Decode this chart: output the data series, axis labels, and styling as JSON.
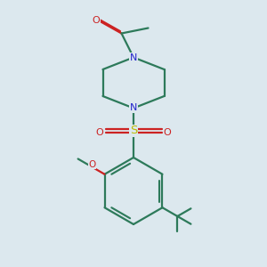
{
  "bg_color": "#dce8ee",
  "bond_color": "#2d7a5a",
  "n_color": "#2222cc",
  "o_color": "#cc2222",
  "s_color": "#bbbb00",
  "linewidth": 1.6,
  "figsize": [
    3.0,
    3.0
  ],
  "dpi": 100,
  "xlim": [
    0,
    10
  ],
  "ylim": [
    0,
    10
  ]
}
